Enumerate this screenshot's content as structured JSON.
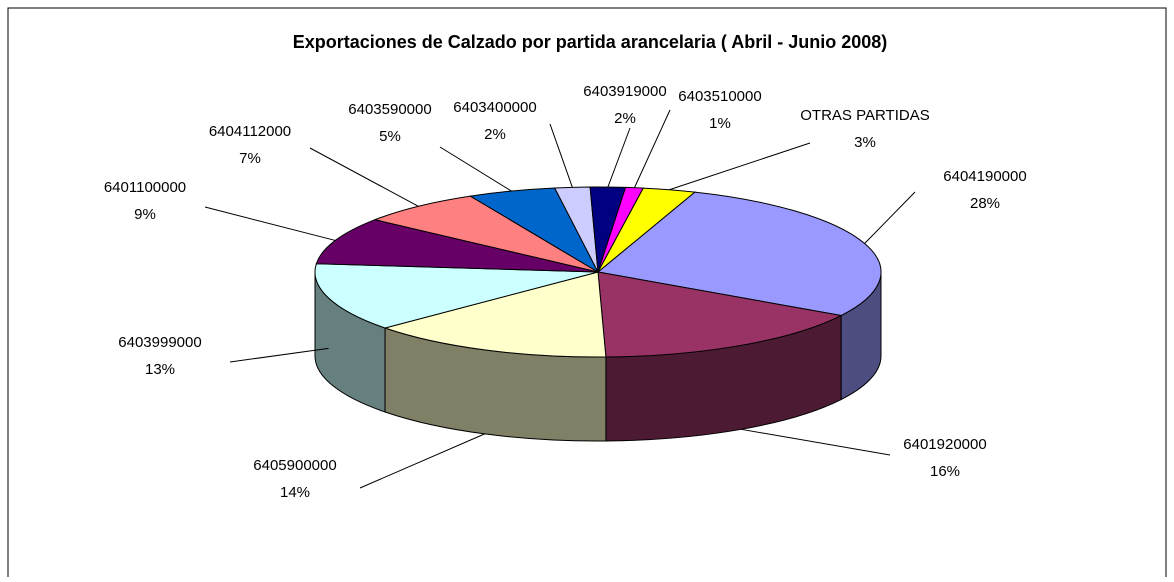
{
  "chart_data": {
    "type": "pie3d",
    "title": "Exportaciones de Calzado por partida arancelaria ( Abril - Junio 2008)",
    "categories": [
      "6404190000",
      "6401920000",
      "6405900000",
      "6403999000",
      "6401100000",
      "6404112000",
      "6403590000",
      "6403400000",
      "6403919000",
      "6403510000",
      "OTRAS PARTIDAS"
    ],
    "values": [
      28,
      16,
      14,
      13,
      9,
      7,
      5,
      2,
      2,
      1,
      3
    ],
    "value_labels": [
      "28%",
      "16%",
      "14%",
      "13%",
      "9%",
      "7%",
      "5%",
      "2%",
      "2%",
      "1%",
      "3%"
    ],
    "colors": [
      "#9999ff",
      "#993366",
      "#ffffcc",
      "#ccffff",
      "#660066",
      "#ff8080",
      "#0066cc",
      "#ccccff",
      "#000080",
      "#ff00ff",
      "#ffff00"
    ]
  }
}
